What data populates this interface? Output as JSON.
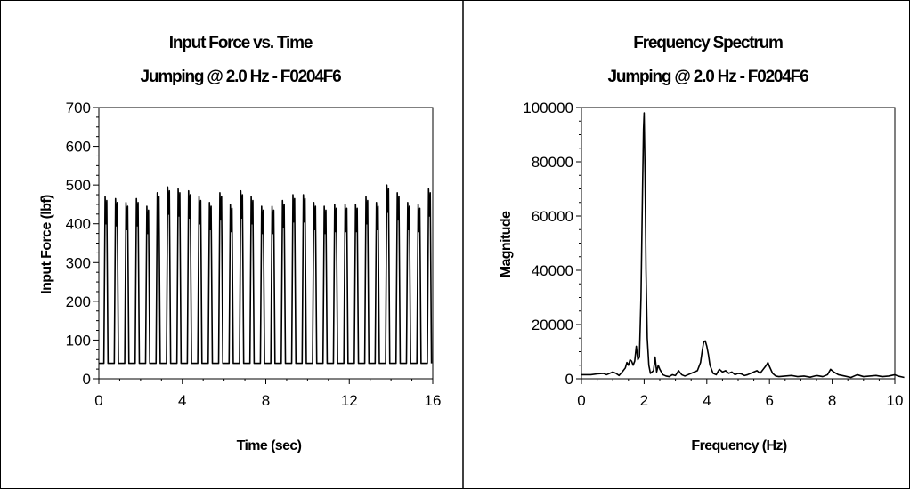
{
  "chart_data": [
    {
      "type": "line",
      "title": "Input Force vs. Time",
      "subtitle": "Jumping @ 2.0 Hz - F0204F6",
      "xlabel": "Time (sec)",
      "ylabel": "Input Force (lbf)",
      "xlim": [
        0,
        16
      ],
      "ylim": [
        0,
        700
      ],
      "xticks": [
        0,
        4,
        8,
        12,
        16
      ],
      "yticks": [
        0,
        100,
        200,
        300,
        400,
        500,
        600,
        700
      ],
      "grid": false,
      "waveform": {
        "frequency_hz": 2.0,
        "baseline": 40,
        "peaks": [
          470,
          465,
          455,
          465,
          445,
          480,
          495,
          490,
          485,
          470,
          455,
          480,
          450,
          485,
          470,
          445,
          445,
          460,
          475,
          475,
          455,
          445,
          450,
          450,
          450,
          470,
          455,
          500,
          480,
          455,
          450,
          490
        ]
      },
      "series": [
        {
          "values": []
        }
      ]
    },
    {
      "type": "line",
      "title": "Frequency Spectrum",
      "subtitle": "Jumping @ 2.0 Hz - F0204F6",
      "xlabel": "Frequency (Hz)",
      "ylabel": "Magnitude",
      "xlim": [
        0,
        10
      ],
      "ylim": [
        0,
        100000
      ],
      "xticks": [
        0,
        2,
        4,
        6,
        8,
        10
      ],
      "yticks": [
        0,
        20000,
        40000,
        60000,
        80000,
        100000
      ],
      "grid": false,
      "series": [
        {
          "x": [
            0,
            0.3,
            0.5,
            0.7,
            0.8,
            1.0,
            1.1,
            1.2,
            1.3,
            1.4,
            1.45,
            1.5,
            1.55,
            1.6,
            1.65,
            1.7,
            1.75,
            1.8,
            1.85,
            1.9,
            1.95,
            1.98,
            2.0,
            2.03,
            2.06,
            2.1,
            2.15,
            2.2,
            2.3,
            2.35,
            2.4,
            2.45,
            2.5,
            2.6,
            2.7,
            2.8,
            2.9,
            3.0,
            3.1,
            3.2,
            3.3,
            3.4,
            3.5,
            3.6,
            3.7,
            3.8,
            3.85,
            3.9,
            3.95,
            4.0,
            4.05,
            4.1,
            4.2,
            4.3,
            4.4,
            4.5,
            4.6,
            4.7,
            4.8,
            4.9,
            5.0,
            5.1,
            5.2,
            5.3,
            5.4,
            5.5,
            5.6,
            5.7,
            5.8,
            5.9,
            5.95,
            6.0,
            6.1,
            6.2,
            6.3,
            6.5,
            6.7,
            6.9,
            7.1,
            7.3,
            7.5,
            7.7,
            7.85,
            7.95,
            8.05,
            8.2,
            8.4,
            8.6,
            8.8,
            9.0,
            9.2,
            9.4,
            9.6,
            9.8,
            10.0,
            10.1,
            10.3
          ],
          "values": [
            1500,
            1500,
            1800,
            2000,
            1500,
            2500,
            2000,
            1200,
            2500,
            4000,
            6000,
            5000,
            7000,
            6500,
            5000,
            6500,
            12000,
            7000,
            8000,
            30000,
            70000,
            92000,
            98000,
            75000,
            40000,
            15000,
            5000,
            2000,
            3000,
            8000,
            2500,
            5000,
            3500,
            1500,
            1000,
            800,
            1500,
            1200,
            3000,
            1500,
            1000,
            1500,
            2000,
            2500,
            3000,
            6000,
            10000,
            13500,
            14000,
            12000,
            9000,
            5000,
            2000,
            1500,
            3500,
            2500,
            3000,
            2000,
            2500,
            1500,
            2000,
            1800,
            1200,
            1500,
            2000,
            2500,
            3000,
            2000,
            3500,
            5000,
            6000,
            4500,
            2000,
            1000,
            800,
            1000,
            1200,
            800,
            1000,
            600,
            1200,
            800,
            1500,
            3500,
            2500,
            1500,
            1000,
            500,
            1500,
            800,
            1000,
            1200,
            800,
            1000,
            1500,
            1000,
            500
          ]
        }
      ]
    }
  ]
}
